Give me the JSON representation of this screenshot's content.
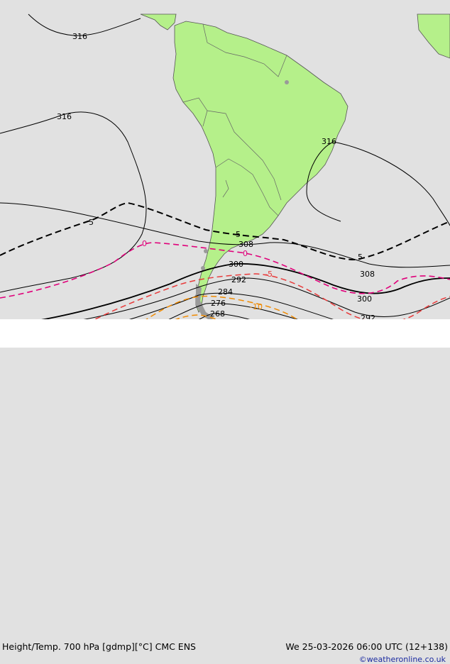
{
  "map": {
    "colors": {
      "ocean": "#e1e1e1",
      "land": "#b5f08a",
      "land_border": "#555555",
      "contour": "#000000",
      "temp_0": "#e0007a",
      "temp_m5": "#e83a3a",
      "temp_m10": "#f08a00"
    },
    "height_labels": {
      "h316a": "316",
      "h316b": "316",
      "h316c": "316",
      "h308a": "308",
      "h308b": "308",
      "h300a": "300",
      "h300b": "300",
      "h292a": "292",
      "h292b": "292",
      "h284": "284",
      "h276": "276",
      "h268": "268"
    },
    "temp_labels": {
      "t5a": "5",
      "t5b": "5",
      "t5c": "5",
      "t0a": "0",
      "t0b": "0",
      "tm5": "-5",
      "tm10": "-10"
    }
  },
  "footer": {
    "title": "Height/Temp. 700 hPa [gdmp][°C] CMC ENS",
    "valid_time": "We 25-03-2026 06:00 UTC (12+138)",
    "credit": "©weatheronline.co.uk"
  }
}
